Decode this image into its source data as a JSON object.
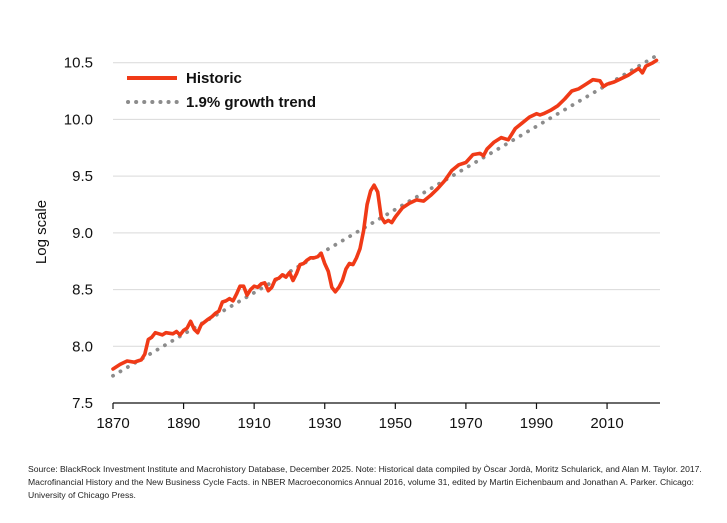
{
  "chart_data": {
    "type": "line",
    "ylabel": "Log scale",
    "xlim": [
      1870,
      2025
    ],
    "ylim": [
      7.5,
      10.7
    ],
    "x_ticks": [
      1870,
      1890,
      1910,
      1930,
      1950,
      1970,
      1990,
      2010
    ],
    "y_ticks": [
      "7.5",
      "8.0",
      "8.5",
      "9.0",
      "9.5",
      "10.0",
      "10.5"
    ],
    "grid": "horizontal",
    "legend_position": "top-left",
    "colors": {
      "historic": "#f03a17",
      "trend": "#8c8c8c"
    },
    "series": [
      {
        "name": "Historic",
        "style": "solid",
        "x": [
          1870,
          1872,
          1874,
          1876,
          1877,
          1878,
          1879,
          1880,
          1881,
          1882,
          1883,
          1884,
          1885,
          1887,
          1888,
          1889,
          1890,
          1891,
          1892,
          1893,
          1894,
          1895,
          1897,
          1898,
          1899,
          1900,
          1901,
          1902,
          1903,
          1904,
          1905,
          1906,
          1907,
          1908,
          1909,
          1910,
          1911,
          1912,
          1913,
          1914,
          1915,
          1916,
          1917,
          1918,
          1919,
          1920,
          1921,
          1922,
          1923,
          1924,
          1925,
          1926,
          1927,
          1928,
          1929,
          1930,
          1931,
          1932,
          1933,
          1934,
          1935,
          1936,
          1937,
          1938,
          1939,
          1940,
          1941,
          1942,
          1943,
          1944,
          1945,
          1946,
          1947,
          1948,
          1949,
          1950,
          1952,
          1954,
          1956,
          1958,
          1960,
          1962,
          1964,
          1966,
          1968,
          1970,
          1972,
          1974,
          1975,
          1976,
          1978,
          1980,
          1982,
          1984,
          1986,
          1988,
          1990,
          1991,
          1992,
          1994,
          1996,
          1998,
          2000,
          2002,
          2004,
          2006,
          2008,
          2009,
          2010,
          2012,
          2014,
          2016,
          2018,
          2019,
          2020,
          2021,
          2023,
          2024
        ],
        "values": [
          7.8,
          7.84,
          7.87,
          7.86,
          7.87,
          7.88,
          7.93,
          8.06,
          8.08,
          8.12,
          8.11,
          8.1,
          8.12,
          8.11,
          8.13,
          8.1,
          8.14,
          8.16,
          8.22,
          8.15,
          8.12,
          8.19,
          8.24,
          8.26,
          8.29,
          8.31,
          8.39,
          8.4,
          8.42,
          8.4,
          8.46,
          8.53,
          8.53,
          8.45,
          8.5,
          8.53,
          8.52,
          8.55,
          8.56,
          8.49,
          8.52,
          8.59,
          8.6,
          8.63,
          8.61,
          8.65,
          8.58,
          8.64,
          8.72,
          8.73,
          8.76,
          8.78,
          8.78,
          8.79,
          8.82,
          8.73,
          8.66,
          8.52,
          8.48,
          8.52,
          8.58,
          8.68,
          8.73,
          8.72,
          8.78,
          8.86,
          9.02,
          9.25,
          9.37,
          9.42,
          9.36,
          9.14,
          9.09,
          9.11,
          9.09,
          9.14,
          9.22,
          9.26,
          9.29,
          9.28,
          9.33,
          9.39,
          9.46,
          9.55,
          9.6,
          9.62,
          9.69,
          9.7,
          9.68,
          9.74,
          9.8,
          9.84,
          9.82,
          9.92,
          9.97,
          10.02,
          10.05,
          10.04,
          10.05,
          10.08,
          10.12,
          10.18,
          10.25,
          10.27,
          10.31,
          10.35,
          10.34,
          10.29,
          10.31,
          10.33,
          10.36,
          10.39,
          10.43,
          10.45,
          10.41,
          10.47,
          10.5,
          10.52
        ]
      },
      {
        "name": "1.9% growth trend",
        "style": "dotted",
        "x": [
          1870,
          2025
        ],
        "values": [
          7.74,
          10.58
        ]
      }
    ]
  },
  "source_note": "Source: BlackRock Investment Institute and Macrohistory Database, December 2025. Note: Historical data compiled by Òscar Jordà, Moritz Schularick, and Alan M. Taylor. 2017. Macrofinancial History and the New Business Cycle Facts. in NBER Macroeconomics Annual 2016, volume 31, edited by Martin Eichenbaum and Jonathan A. Parker. Chicago: University of Chicago Press."
}
